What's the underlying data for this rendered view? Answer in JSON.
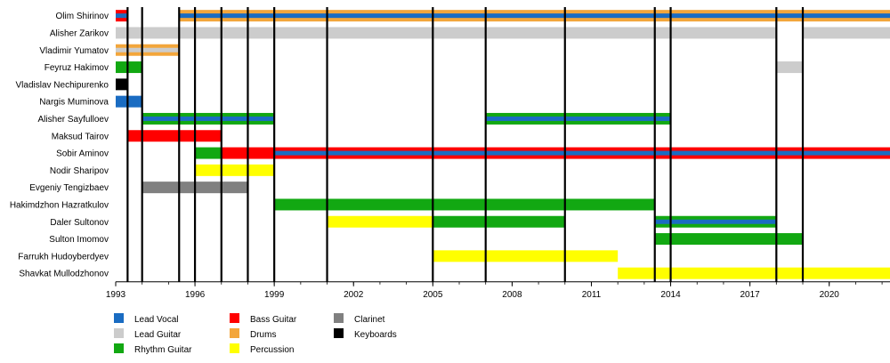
{
  "chart_data": {
    "type": "timeline",
    "x_axis": {
      "range": [
        1993,
        2022.3
      ],
      "ticks": [
        "1993",
        "1996",
        "1999",
        "2002",
        "2005",
        "2008",
        "2011",
        "2014",
        "2017",
        "2020"
      ]
    },
    "event_years": [
      1993.45,
      1994,
      1995.4,
      1996,
      1997,
      1998,
      1999,
      2001,
      2005,
      2007,
      2010,
      2013.4,
      2014,
      2018,
      2019
    ],
    "colors": {
      "lead_vocal": "#1a6cc2",
      "lead_guitar": "#cccccc",
      "rhythm_guitar": "#12a812",
      "bass_guitar": "#ff0000",
      "drums": "#f3a63b",
      "percussion": "#ffff00",
      "clarinet": "#808080",
      "keyboards": "#000000"
    },
    "members": [
      {
        "name": "Olim Shirinov",
        "periods": [
          {
            "role": "bass_guitar",
            "accent": "lead_vocal",
            "start": 1993,
            "end": 1993.45
          },
          {
            "role": "drums",
            "accent": "lead_vocal",
            "start": 1995.4,
            "end": 2022.3
          }
        ]
      },
      {
        "name": "Alisher Zarikov",
        "periods": [
          {
            "role": "lead_guitar",
            "start": 1993,
            "end": 2018
          },
          {
            "role": "lead_guitar",
            "start": 2019,
            "end": 2022.3
          }
        ]
      },
      {
        "name": "Vladimir Yumatov",
        "periods": [
          {
            "role": "drums",
            "accent": "lead_guitar",
            "start": 1993,
            "end": 1995.4
          }
        ]
      },
      {
        "name": "Feyruz Hakimov",
        "periods": [
          {
            "role": "rhythm_guitar",
            "start": 1993,
            "end": 1994
          },
          {
            "role": "lead_guitar",
            "start": 2018,
            "end": 2019
          }
        ]
      },
      {
        "name": "Vladislav Nechipurenko",
        "periods": [
          {
            "role": "keyboards",
            "start": 1993,
            "end": 1993.45
          }
        ]
      },
      {
        "name": "Nargis Muminova",
        "periods": [
          {
            "role": "lead_vocal",
            "start": 1993,
            "end": 1994
          }
        ]
      },
      {
        "name": "Alisher Sayfulloev",
        "periods": [
          {
            "role": "rhythm_guitar",
            "accent": "lead_vocal",
            "start": 1994,
            "end": 1999
          },
          {
            "role": "rhythm_guitar",
            "accent": "lead_vocal",
            "start": 2007,
            "end": 2014
          }
        ]
      },
      {
        "name": "Maksud Tairov",
        "periods": [
          {
            "role": "bass_guitar",
            "start": 1993.45,
            "end": 1997
          }
        ]
      },
      {
        "name": "Sobir Aminov",
        "periods": [
          {
            "role": "rhythm_guitar",
            "start": 1996,
            "end": 1997
          },
          {
            "role": "bass_guitar",
            "start": 1997,
            "end": 1999
          },
          {
            "role": "bass_guitar",
            "accent": "lead_vocal",
            "start": 1999,
            "end": 2022.3
          }
        ]
      },
      {
        "name": "Nodir Sharipov",
        "periods": [
          {
            "role": "percussion",
            "start": 1996,
            "end": 1999
          }
        ]
      },
      {
        "name": "Evgeniy Tengizbaev",
        "periods": [
          {
            "role": "clarinet",
            "start": 1994,
            "end": 1998
          }
        ]
      },
      {
        "name": "Hakimdzhon Hazratkulov",
        "periods": [
          {
            "role": "rhythm_guitar",
            "start": 1999,
            "end": 2013.4
          }
        ]
      },
      {
        "name": "Daler Sultonov",
        "periods": [
          {
            "role": "percussion",
            "start": 2001,
            "end": 2005
          },
          {
            "role": "rhythm_guitar",
            "start": 2005,
            "end": 2010
          },
          {
            "role": "rhythm_guitar",
            "accent": "lead_vocal",
            "start": 2013.4,
            "end": 2018
          }
        ]
      },
      {
        "name": "Sulton Imomov",
        "periods": [
          {
            "role": "rhythm_guitar",
            "start": 2013.4,
            "end": 2019
          }
        ]
      },
      {
        "name": "Farrukh Hudoyberdyev",
        "periods": [
          {
            "role": "percussion",
            "start": 2005,
            "end": 2012
          }
        ]
      },
      {
        "name": "Shavkat Mullodzhonov",
        "periods": [
          {
            "role": "percussion",
            "start": 2012,
            "end": 2022.3
          }
        ]
      }
    ],
    "legend": [
      {
        "key": "lead_vocal",
        "label": "Lead Vocal"
      },
      {
        "key": "lead_guitar",
        "label": "Lead Guitar"
      },
      {
        "key": "rhythm_guitar",
        "label": "Rhythm Guitar"
      },
      {
        "key": "bass_guitar",
        "label": "Bass Guitar"
      },
      {
        "key": "drums",
        "label": "Drums"
      },
      {
        "key": "percussion",
        "label": "Percussion"
      },
      {
        "key": "clarinet",
        "label": "Clarinet"
      },
      {
        "key": "keyboards",
        "label": "Keyboards"
      }
    ]
  }
}
